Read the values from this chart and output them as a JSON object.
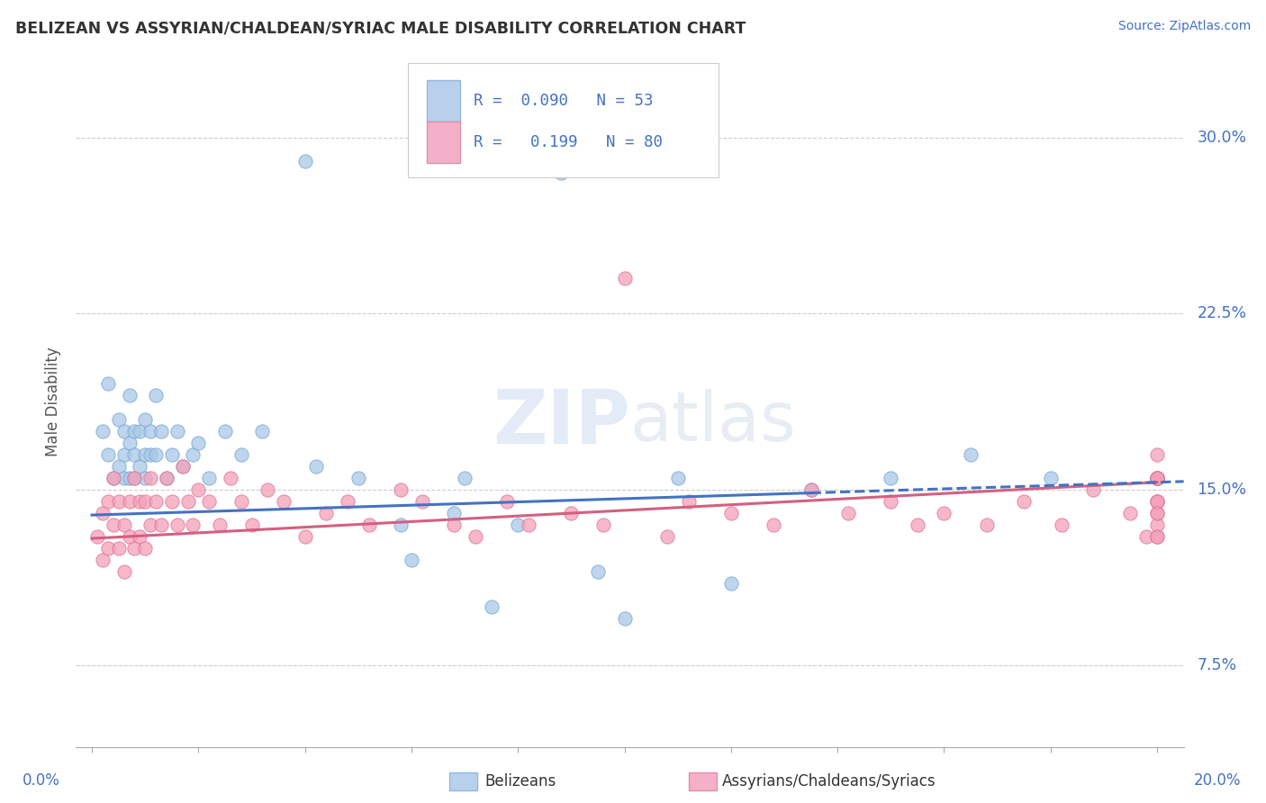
{
  "title": "BELIZEAN VS ASSYRIAN/CHALDEAN/SYRIAC MALE DISABILITY CORRELATION CHART",
  "source": "Source: ZipAtlas.com",
  "ylabel": "Male Disability",
  "xlim": [
    0.0,
    0.2
  ],
  "ylim": [
    0.04,
    0.335
  ],
  "yticks": [
    0.075,
    0.15,
    0.225,
    0.3
  ],
  "ytick_labels": [
    "7.5%",
    "15.0%",
    "22.5%",
    "30.0%"
  ],
  "color_blue": "#a8c8e8",
  "color_pink": "#f4a0b8",
  "color_blue_edge": "#7aaad0",
  "color_pink_edge": "#e07898",
  "color_line_blue": "#4472c4",
  "color_line_pink": "#d46080",
  "watermark_color": "#e8edf5",
  "belizean_x": [
    0.002,
    0.003,
    0.003,
    0.004,
    0.005,
    0.005,
    0.006,
    0.006,
    0.006,
    0.007,
    0.007,
    0.007,
    0.008,
    0.008,
    0.008,
    0.009,
    0.009,
    0.01,
    0.01,
    0.01,
    0.011,
    0.011,
    0.012,
    0.012,
    0.013,
    0.014,
    0.015,
    0.016,
    0.017,
    0.019,
    0.02,
    0.022,
    0.025,
    0.028,
    0.032,
    0.04,
    0.042,
    0.05,
    0.058,
    0.06,
    0.068,
    0.07,
    0.075,
    0.08,
    0.088,
    0.095,
    0.1,
    0.11,
    0.12,
    0.135,
    0.15,
    0.165,
    0.18
  ],
  "belizean_y": [
    0.175,
    0.195,
    0.165,
    0.155,
    0.18,
    0.16,
    0.175,
    0.165,
    0.155,
    0.19,
    0.17,
    0.155,
    0.175,
    0.165,
    0.155,
    0.175,
    0.16,
    0.18,
    0.165,
    0.155,
    0.175,
    0.165,
    0.19,
    0.165,
    0.175,
    0.155,
    0.165,
    0.175,
    0.16,
    0.165,
    0.17,
    0.155,
    0.175,
    0.165,
    0.175,
    0.29,
    0.16,
    0.155,
    0.135,
    0.12,
    0.14,
    0.155,
    0.1,
    0.135,
    0.285,
    0.115,
    0.095,
    0.155,
    0.11,
    0.15,
    0.155,
    0.165,
    0.155
  ],
  "assyrian_x": [
    0.001,
    0.002,
    0.002,
    0.003,
    0.003,
    0.004,
    0.004,
    0.005,
    0.005,
    0.006,
    0.006,
    0.007,
    0.007,
    0.008,
    0.008,
    0.009,
    0.009,
    0.01,
    0.01,
    0.011,
    0.011,
    0.012,
    0.013,
    0.014,
    0.015,
    0.016,
    0.017,
    0.018,
    0.019,
    0.02,
    0.022,
    0.024,
    0.026,
    0.028,
    0.03,
    0.033,
    0.036,
    0.04,
    0.044,
    0.048,
    0.052,
    0.058,
    0.062,
    0.068,
    0.072,
    0.078,
    0.082,
    0.09,
    0.096,
    0.1,
    0.108,
    0.112,
    0.12,
    0.128,
    0.135,
    0.142,
    0.15,
    0.155,
    0.16,
    0.168,
    0.175,
    0.182,
    0.188,
    0.195,
    0.198,
    0.2,
    0.2,
    0.2,
    0.2,
    0.2,
    0.2,
    0.2,
    0.2,
    0.2,
    0.2,
    0.2,
    0.2,
    0.2,
    0.2,
    0.2
  ],
  "assyrian_y": [
    0.13,
    0.14,
    0.12,
    0.145,
    0.125,
    0.135,
    0.155,
    0.125,
    0.145,
    0.135,
    0.115,
    0.145,
    0.13,
    0.155,
    0.125,
    0.145,
    0.13,
    0.145,
    0.125,
    0.155,
    0.135,
    0.145,
    0.135,
    0.155,
    0.145,
    0.135,
    0.16,
    0.145,
    0.135,
    0.15,
    0.145,
    0.135,
    0.155,
    0.145,
    0.135,
    0.15,
    0.145,
    0.13,
    0.14,
    0.145,
    0.135,
    0.15,
    0.145,
    0.135,
    0.13,
    0.145,
    0.135,
    0.14,
    0.135,
    0.24,
    0.13,
    0.145,
    0.14,
    0.135,
    0.15,
    0.14,
    0.145,
    0.135,
    0.14,
    0.135,
    0.145,
    0.135,
    0.15,
    0.14,
    0.13,
    0.155,
    0.165,
    0.155,
    0.145,
    0.14,
    0.155,
    0.13,
    0.155,
    0.145,
    0.135,
    0.155,
    0.13,
    0.145,
    0.155,
    0.14
  ],
  "bel_trend_x0": 0.0,
  "bel_trend_x1": 0.2,
  "bel_trend_y0": 0.139,
  "bel_trend_y1": 0.153,
  "ass_trend_x0": 0.0,
  "ass_trend_x1": 0.2,
  "ass_trend_y0": 0.129,
  "ass_trend_y1": 0.153
}
